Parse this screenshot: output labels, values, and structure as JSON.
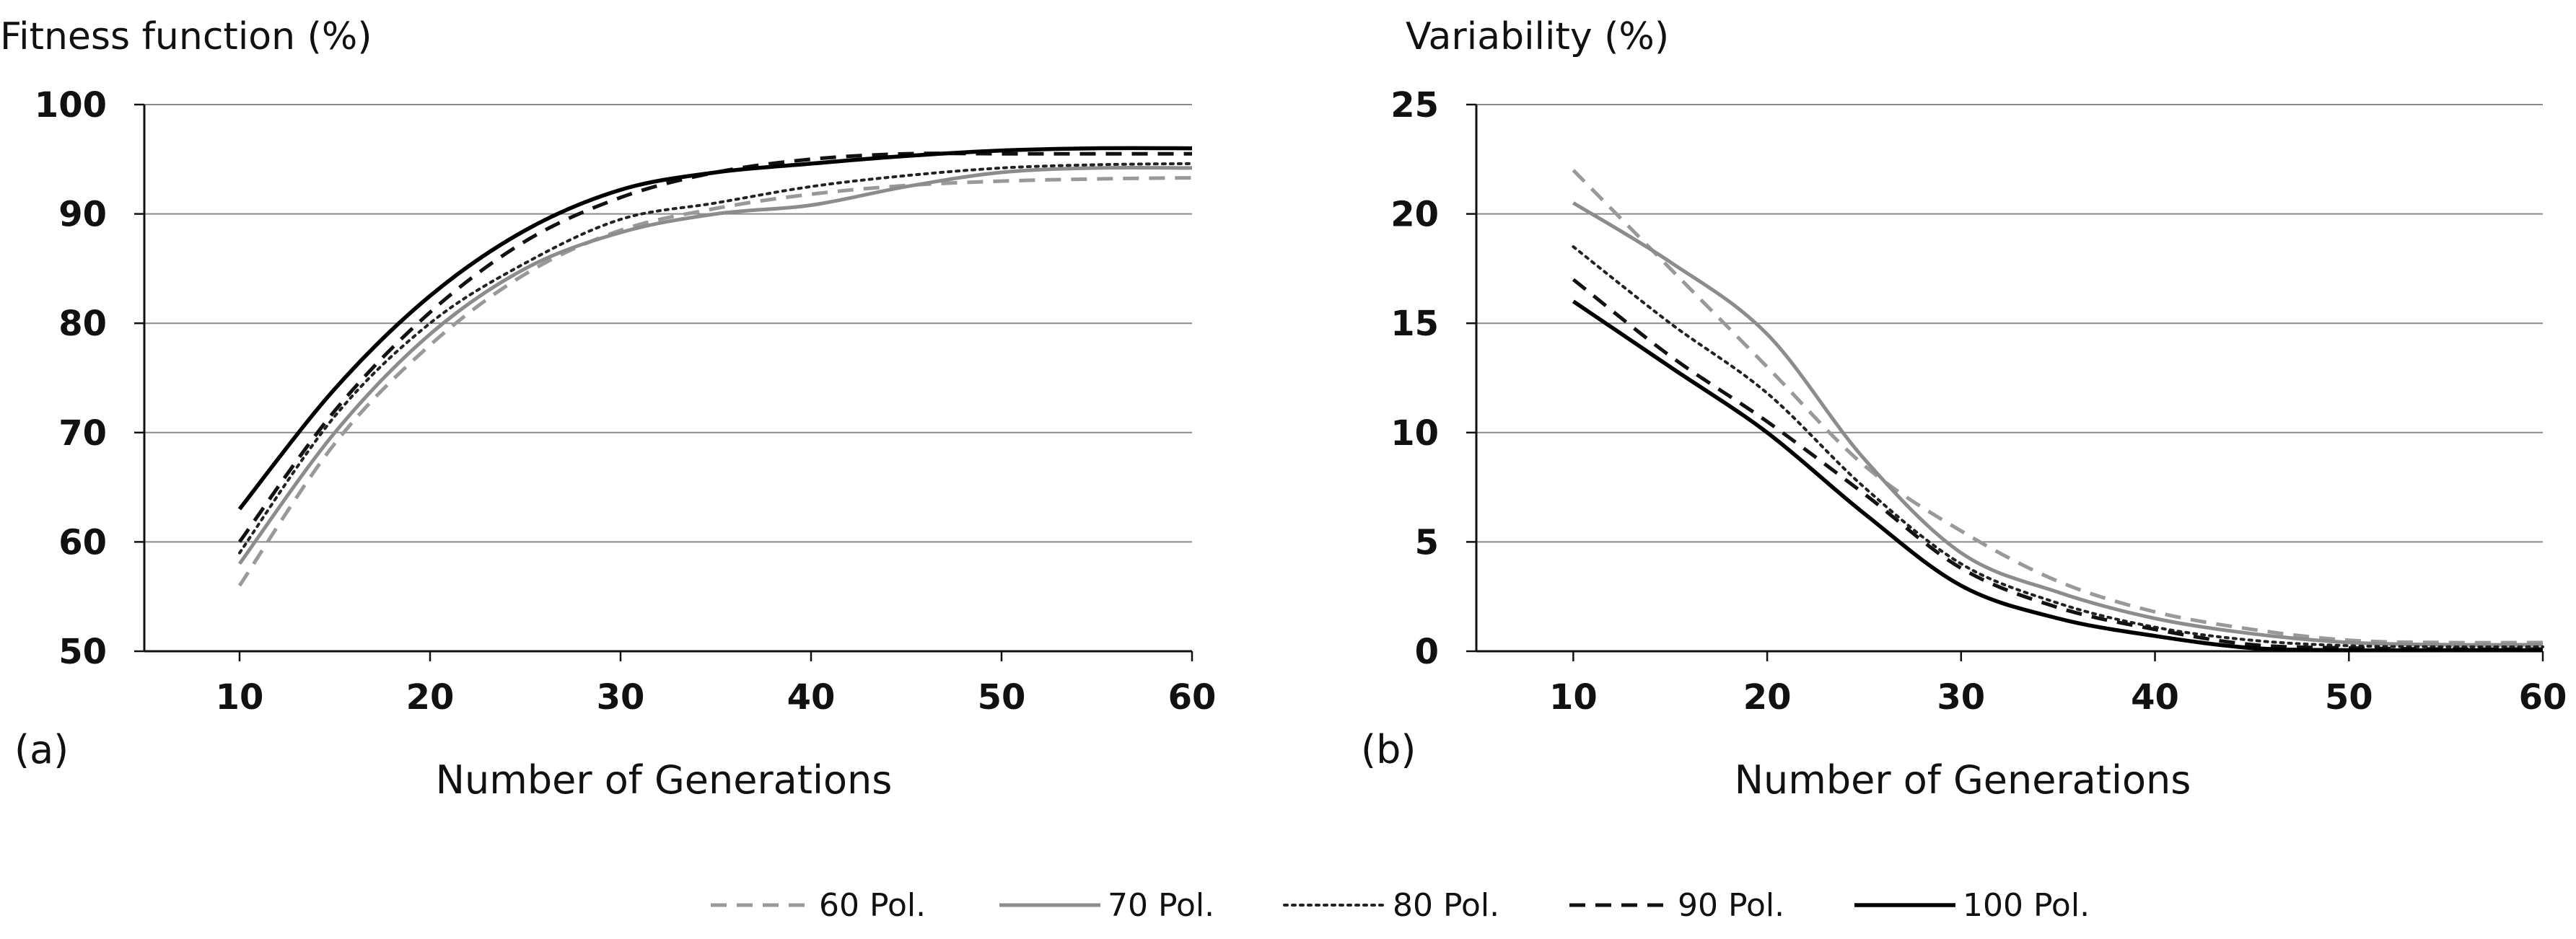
{
  "chart_data": [
    {
      "type": "line",
      "panel_label": "(a)",
      "title": "Fitness function (%)",
      "xlabel": "Number of Generations",
      "ylabel": "Fitness function (%)",
      "xlim": [
        5,
        60
      ],
      "ylim": [
        50,
        100
      ],
      "xticks": [
        10,
        20,
        30,
        40,
        50,
        60
      ],
      "yticks": [
        50,
        60,
        70,
        80,
        90,
        100
      ],
      "grid": "horizontal",
      "x": [
        10,
        15,
        20,
        25,
        30,
        35,
        40,
        45,
        50,
        55,
        60
      ],
      "series": [
        {
          "name": "60 Pol.",
          "values": [
            56,
            69,
            78,
            84.5,
            88.5,
            90.5,
            91.8,
            92.6,
            93.0,
            93.2,
            93.3
          ]
        },
        {
          "name": "70 Pol.",
          "values": [
            58,
            70,
            79,
            85,
            88.3,
            90,
            90.8,
            92.5,
            93.8,
            94.2,
            94.2
          ]
        },
        {
          "name": "80 Pol.",
          "values": [
            59,
            71.5,
            80,
            85.5,
            89.5,
            91,
            92.5,
            93.5,
            94.2,
            94.5,
            94.6
          ]
        },
        {
          "name": "90 Pol.",
          "values": [
            60,
            72,
            81,
            87.5,
            91.5,
            93.8,
            95,
            95.5,
            95.5,
            95.5,
            95.5
          ]
        },
        {
          "name": "100 Pol.",
          "values": [
            63,
            74,
            82.5,
            88.5,
            92.2,
            93.8,
            94.6,
            95.3,
            95.8,
            96,
            96
          ]
        }
      ]
    },
    {
      "type": "line",
      "panel_label": "(b)",
      "title": "Variability (%)",
      "xlabel": "Number of Generations",
      "ylabel": "Variability (%)",
      "xlim": [
        5,
        60
      ],
      "ylim": [
        0,
        25
      ],
      "xticks": [
        10,
        20,
        30,
        40,
        50,
        60
      ],
      "yticks": [
        0,
        5,
        10,
        15,
        20,
        25
      ],
      "grid": "horizontal",
      "x": [
        10,
        15,
        20,
        25,
        30,
        35,
        40,
        45,
        50,
        55,
        60
      ],
      "series": [
        {
          "name": "60 Pol.",
          "values": [
            22,
            17.5,
            13,
            8.5,
            5.5,
            3.2,
            1.8,
            1.0,
            0.5,
            0.4,
            0.4
          ]
        },
        {
          "name": "70 Pol.",
          "values": [
            20.5,
            17.8,
            14.5,
            8.8,
            4.5,
            2.7,
            1.5,
            0.8,
            0.4,
            0.3,
            0.3
          ]
        },
        {
          "name": "80 Pol.",
          "values": [
            18.5,
            15,
            11.8,
            7.5,
            4.0,
            2.2,
            1.1,
            0.5,
            0.25,
            0.2,
            0.2
          ]
        },
        {
          "name": "90 Pol.",
          "values": [
            17,
            13.5,
            10.5,
            7.2,
            3.8,
            2.0,
            1.0,
            0.3,
            0.15,
            0.1,
            0.1
          ]
        },
        {
          "name": "100 Pol.",
          "values": [
            16,
            13,
            10,
            6.3,
            3.0,
            1.5,
            0.7,
            0.15,
            0.05,
            0.05,
            0.05
          ]
        }
      ]
    }
  ],
  "legend": {
    "placement": "bottom-center",
    "items": [
      {
        "label": "60 Pol.",
        "color": "#999999",
        "dash": "dashed"
      },
      {
        "label": "70 Pol.",
        "color": "#8c8c8c",
        "dash": "solid"
      },
      {
        "label": "80 Pol.",
        "color": "#222222",
        "dash": "dotted"
      },
      {
        "label": "90 Pol.",
        "color": "#111111",
        "dash": "dashed"
      },
      {
        "label": "100 Pol.",
        "color": "#000000",
        "dash": "solid"
      }
    ]
  }
}
